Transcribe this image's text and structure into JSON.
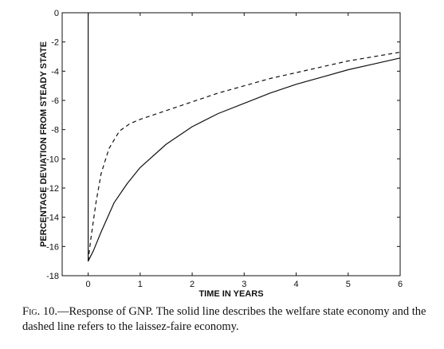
{
  "chart_data": {
    "type": "line",
    "xlabel": "TIME IN YEARS",
    "ylabel": "PERCENTAGE DEVIATION FROM STEADY STATE",
    "xlim": [
      -0.5,
      6
    ],
    "ylim": [
      -18,
      0
    ],
    "x_ticks": [
      0,
      1,
      2,
      3,
      4,
      5,
      6
    ],
    "y_ticks": [
      0,
      -2,
      -4,
      -6,
      -8,
      -10,
      -12,
      -14,
      -16,
      -18
    ],
    "grid": false,
    "series": [
      {
        "style": "solid",
        "points": [
          [
            0.0,
            0.0
          ],
          [
            0.0,
            -17.0
          ],
          [
            0.1,
            -16.3
          ],
          [
            0.25,
            -15.0
          ],
          [
            0.5,
            -13.0
          ],
          [
            0.75,
            -11.7
          ],
          [
            1.0,
            -10.6
          ],
          [
            1.5,
            -9.0
          ],
          [
            2.0,
            -7.8
          ],
          [
            2.5,
            -6.9
          ],
          [
            3.0,
            -6.2
          ],
          [
            3.5,
            -5.5
          ],
          [
            4.0,
            -4.9
          ],
          [
            4.5,
            -4.4
          ],
          [
            5.0,
            -3.9
          ],
          [
            5.5,
            -3.5
          ],
          [
            6.0,
            -3.1
          ]
        ]
      },
      {
        "style": "dashed",
        "points": [
          [
            0.0,
            -17.0
          ],
          [
            0.05,
            -15.5
          ],
          [
            0.15,
            -13.0
          ],
          [
            0.25,
            -11.0
          ],
          [
            0.4,
            -9.3
          ],
          [
            0.6,
            -8.1
          ],
          [
            0.8,
            -7.6
          ],
          [
            1.0,
            -7.3
          ],
          [
            1.5,
            -6.7
          ],
          [
            2.0,
            -6.1
          ],
          [
            2.5,
            -5.5
          ],
          [
            3.0,
            -5.0
          ],
          [
            3.5,
            -4.5
          ],
          [
            4.0,
            -4.1
          ],
          [
            4.5,
            -3.7
          ],
          [
            5.0,
            -3.3
          ],
          [
            5.5,
            -3.0
          ],
          [
            6.0,
            -2.7
          ]
        ]
      }
    ]
  },
  "caption": {
    "fig": "Fig. 10.",
    "text": "—Response of GNP. The solid line describes the welfare state economy and the dashed line refers to the laissez-faire economy."
  }
}
